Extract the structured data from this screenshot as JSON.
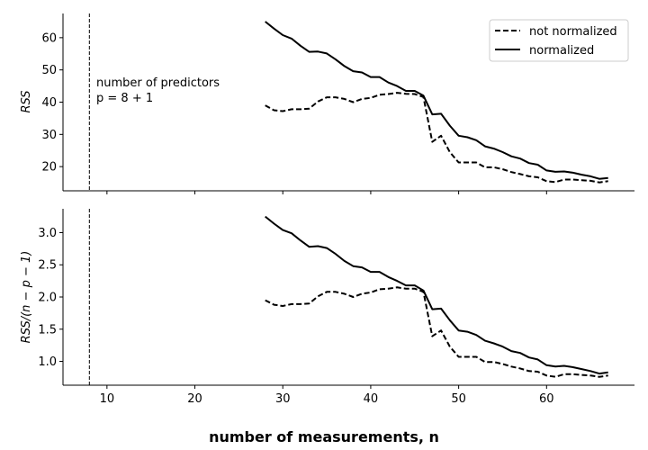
{
  "chart_data": {
    "type": "line",
    "xlabel": "number of measurements, n",
    "x_ticks": [
      10,
      20,
      30,
      40,
      50,
      60
    ],
    "vline_x": 8,
    "annotation": [
      "number of predictors",
      "p = 8 + 1"
    ],
    "legend": {
      "placement": "top-right",
      "entries": [
        {
          "label": "not normalized",
          "style": "dashed"
        },
        {
          "label": "normalized",
          "style": "solid"
        }
      ]
    },
    "x": [
      28,
      29,
      30,
      31,
      32,
      33,
      34,
      35,
      36,
      37,
      38,
      39,
      40,
      41,
      42,
      43,
      44,
      45,
      46,
      47,
      48,
      49,
      50,
      51,
      52,
      53,
      54,
      55,
      56,
      57,
      58,
      59,
      60,
      61,
      62,
      63,
      64,
      65,
      66,
      67
    ],
    "panels": [
      {
        "ylabel": "RSS",
        "xlim": [
          5,
          70
        ],
        "ylim": [
          12.5,
          67.5
        ],
        "y_ticks": [
          20,
          30,
          40,
          50,
          60
        ],
        "y_tick_labels": [
          "20",
          "30",
          "40",
          "50",
          "60"
        ],
        "series": [
          {
            "name": "not normalized",
            "style": "dashed",
            "values": [
              39.0,
              37.5,
              37.2,
              37.8,
              37.8,
              38.0,
              40.2,
              41.5,
              41.5,
              41.0,
              40.0,
              41.0,
              41.3,
              42.3,
              42.5,
              42.9,
              42.6,
              42.5,
              41.6,
              27.7,
              29.6,
              24.5,
              21.3,
              21.3,
              21.3,
              19.8,
              19.8,
              19.2,
              18.3,
              17.7,
              17.0,
              16.7,
              15.5,
              15.2,
              16.0,
              16.0,
              15.8,
              15.6,
              15.1,
              15.5
            ]
          },
          {
            "name": "normalized",
            "style": "solid",
            "values": [
              65.0,
              62.8,
              60.8,
              59.7,
              57.5,
              55.6,
              55.7,
              55.1,
              53.3,
              51.2,
              49.6,
              49.2,
              47.8,
              47.8,
              46.1,
              45.0,
              43.5,
              43.5,
              42.0,
              36.2,
              36.4,
              32.7,
              29.6,
              29.1,
              28.2,
              26.3,
              25.6,
              24.5,
              23.2,
              22.5,
              21.1,
              20.6,
              18.8,
              18.4,
              18.5,
              18.1,
              17.5,
              17.0,
              16.2,
              16.5
            ]
          }
        ]
      },
      {
        "ylabel": "RSS/(n − p − 1)",
        "xlim": [
          5,
          70
        ],
        "ylim": [
          0.63,
          3.37
        ],
        "y_ticks": [
          1.0,
          1.5,
          2.0,
          2.5,
          3.0
        ],
        "y_tick_labels": [
          "1.0",
          "1.5",
          "2.0",
          "2.5",
          "3.0"
        ],
        "series": [
          {
            "name": "not normalized",
            "style": "dashed",
            "values": [
              1.95,
              1.88,
              1.86,
              1.89,
              1.89,
              1.9,
              2.01,
              2.08,
              2.08,
              2.05,
              2.0,
              2.05,
              2.07,
              2.12,
              2.13,
              2.15,
              2.13,
              2.13,
              2.08,
              1.39,
              1.48,
              1.23,
              1.07,
              1.07,
              1.07,
              0.99,
              0.99,
              0.96,
              0.92,
              0.89,
              0.85,
              0.84,
              0.78,
              0.76,
              0.8,
              0.8,
              0.79,
              0.78,
              0.76,
              0.78
            ]
          },
          {
            "name": "normalized",
            "style": "solid",
            "values": [
              3.25,
              3.14,
              3.04,
              2.99,
              2.88,
              2.78,
              2.79,
              2.76,
              2.67,
              2.56,
              2.48,
              2.46,
              2.39,
              2.39,
              2.31,
              2.25,
              2.18,
              2.18,
              2.1,
              1.81,
              1.82,
              1.64,
              1.48,
              1.46,
              1.41,
              1.32,
              1.28,
              1.23,
              1.16,
              1.13,
              1.06,
              1.03,
              0.94,
              0.92,
              0.93,
              0.91,
              0.88,
              0.85,
              0.81,
              0.83
            ]
          }
        ]
      }
    ]
  }
}
